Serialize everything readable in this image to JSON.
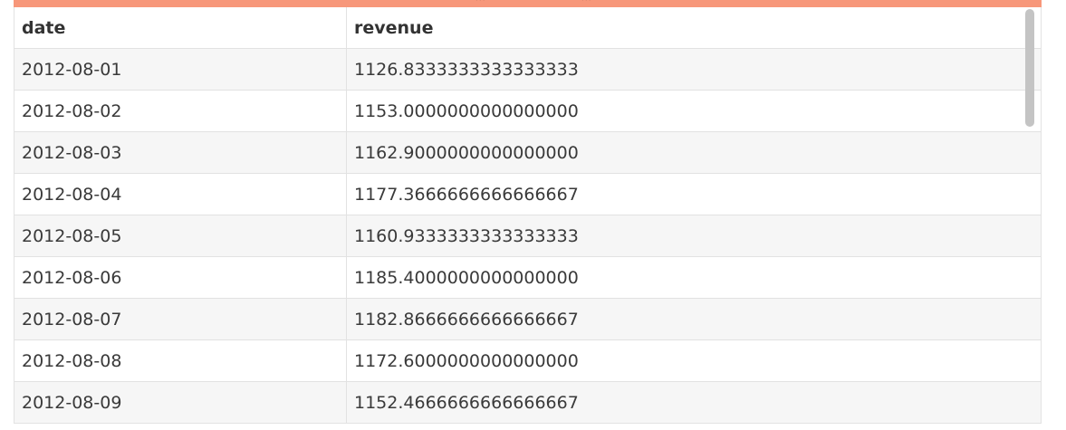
{
  "table": {
    "columns": [
      "date",
      "revenue"
    ],
    "rows": [
      [
        "2012-08-01",
        "1126.8333333333333333"
      ],
      [
        "2012-08-02",
        "1153.0000000000000000"
      ],
      [
        "2012-08-03",
        "1162.9000000000000000"
      ],
      [
        "2012-08-04",
        "1177.3666666666666667"
      ],
      [
        "2012-08-05",
        "1160.9333333333333333"
      ],
      [
        "2012-08-06",
        "1185.4000000000000000"
      ],
      [
        "2012-08-07",
        "1182.8666666666666667"
      ],
      [
        "2012-08-08",
        "1172.6000000000000000"
      ],
      [
        "2012-08-09",
        "1152.4666666666666667"
      ]
    ]
  },
  "colors": {
    "resize_bar": "#f7977a",
    "row_stripe": "#f6f6f6",
    "scrollbar_thumb": "#c4c4c4"
  },
  "icons": {
    "resize_grip": "drag-handle-icon"
  }
}
